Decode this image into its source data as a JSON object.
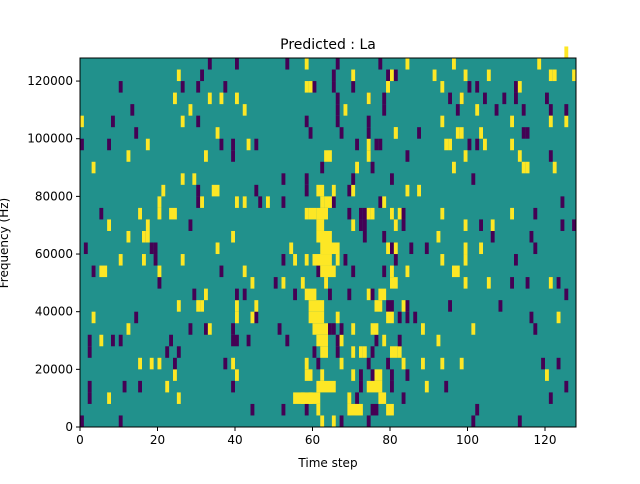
{
  "chart_data": {
    "type": "heatmap",
    "title": "Predicted : La",
    "xlabel": "Time step",
    "ylabel": "Frequency (Hz)",
    "xlim": [
      0,
      128
    ],
    "ylim": [
      0,
      128000
    ],
    "x_ticks": [
      0,
      20,
      40,
      60,
      80,
      100,
      120
    ],
    "x_tick_labels": [
      "0",
      "20",
      "40",
      "60",
      "80",
      "100",
      "120"
    ],
    "y_ticks": [
      0,
      20000,
      40000,
      60000,
      80000,
      100000,
      120000
    ],
    "y_tick_labels": [
      "0",
      "20000",
      "40000",
      "60000",
      "80000",
      "100000",
      "120000"
    ],
    "grid": false,
    "colormap": "viridis",
    "values_levels": [
      0,
      1,
      2
    ],
    "colors": {
      "low": "#440154",
      "mid": "#21918c",
      "high": "#fde725"
    },
    "background_level": 1,
    "row_height": 4000,
    "cells": {
      "high": [
        [
          62,
          0,
          1,
          ""
        ],
        [
          61,
          4000,
          1,
          "x3"
        ],
        [
          55,
          8000,
          5,
          ""
        ],
        [
          60,
          8000,
          2,
          "x2"
        ],
        [
          69,
          4000,
          4,
          ""
        ],
        [
          77,
          8000,
          2,
          ""
        ],
        [
          79,
          4000,
          2,
          ""
        ],
        [
          25,
          8000,
          1,
          ""
        ],
        [
          61,
          12000,
          5,
          ""
        ],
        [
          74,
          12000,
          4,
          ""
        ],
        [
          58,
          16000,
          2,
          ""
        ],
        [
          62,
          16000,
          1,
          ""
        ],
        [
          76,
          16000,
          2,
          ""
        ],
        [
          18,
          20000,
          1,
          ""
        ],
        [
          88,
          20000,
          1,
          ""
        ],
        [
          62,
          24000,
          2,
          ""
        ],
        [
          72,
          24000,
          1,
          ""
        ],
        [
          80,
          24000,
          2,
          ""
        ],
        [
          5,
          28000,
          1,
          ""
        ],
        [
          92,
          28000,
          1,
          ""
        ],
        [
          61,
          28000,
          3,
          "x2"
        ],
        [
          78,
          28000,
          1,
          ""
        ],
        [
          12,
          32000,
          1,
          ""
        ],
        [
          33,
          32000,
          1,
          ""
        ],
        [
          75,
          32000,
          1,
          ""
        ],
        [
          60,
          32000,
          4,
          "x6"
        ],
        [
          70,
          32000,
          1,
          ""
        ],
        [
          88,
          32000,
          1,
          ""
        ],
        [
          3,
          36000,
          1,
          ""
        ],
        [
          40,
          36000,
          1,
          ""
        ],
        [
          44,
          36000,
          1,
          ""
        ],
        [
          59,
          36000,
          4,
          ""
        ],
        [
          79,
          36000,
          2,
          "x3"
        ],
        [
          25,
          40000,
          1,
          ""
        ],
        [
          31,
          40000,
          1,
          ""
        ],
        [
          45,
          40000,
          1,
          "x3"
        ],
        [
          59,
          40000,
          4,
          "x2"
        ],
        [
          76,
          40000,
          2,
          ""
        ],
        [
          32,
          44000,
          1,
          "x2"
        ],
        [
          58,
          44000,
          3,
          ""
        ],
        [
          77,
          44000,
          2,
          ""
        ],
        [
          63,
          48000,
          1,
          ""
        ],
        [
          80,
          48000,
          2,
          ""
        ],
        [
          5,
          52000,
          2,
          ""
        ],
        [
          20,
          52000,
          1,
          ""
        ],
        [
          62,
          52000,
          4,
          ""
        ],
        [
          96,
          52000,
          2,
          ""
        ],
        [
          10,
          56000,
          1,
          ""
        ],
        [
          26,
          56000,
          1,
          ""
        ],
        [
          55,
          56000,
          1,
          ""
        ],
        [
          60,
          56000,
          5,
          "x2"
        ],
        [
          93,
          56000,
          1,
          ""
        ],
        [
          62,
          60000,
          5,
          ""
        ],
        [
          16,
          64000,
          1,
          ""
        ],
        [
          61,
          64000,
          3,
          ""
        ],
        [
          92,
          64000,
          1,
          ""
        ],
        [
          61,
          68000,
          2,
          ""
        ],
        [
          106,
          68000,
          1,
          ""
        ],
        [
          15,
          72000,
          1,
          ""
        ],
        [
          20,
          72000,
          1,
          ""
        ],
        [
          23,
          72000,
          2,
          ""
        ],
        [
          75,
          72000,
          1,
          ""
        ],
        [
          59,
          72000,
          2,
          ""
        ],
        [
          61,
          72000,
          3,
          "x2"
        ],
        [
          31,
          76000,
          1,
          ""
        ],
        [
          40,
          76000,
          1,
          ""
        ],
        [
          48,
          76000,
          1,
          ""
        ],
        [
          78,
          76000,
          1,
          ""
        ],
        [
          63,
          76000,
          2,
          ""
        ],
        [
          26,
          84000,
          1,
          ""
        ],
        [
          21,
          80000,
          1,
          ""
        ],
        [
          34,
          80000,
          2,
          ""
        ],
        [
          61,
          80000,
          2,
          "x2"
        ],
        [
          65,
          80000,
          1,
          ""
        ],
        [
          87,
          80000,
          1,
          ""
        ],
        [
          99,
          92000,
          1,
          ""
        ],
        [
          115,
          88000,
          1,
          ""
        ],
        [
          122,
          88000,
          1,
          ""
        ],
        [
          74,
          92000,
          1,
          ""
        ],
        [
          94,
          96000,
          1,
          ""
        ],
        [
          111,
          96000,
          1,
          ""
        ],
        [
          81,
          100000,
          1,
          ""
        ],
        [
          103,
          100000,
          1,
          ""
        ],
        [
          121,
          104000,
          1,
          ""
        ],
        [
          68,
          108000,
          1,
          ""
        ],
        [
          74,
          112000,
          1,
          ""
        ],
        [
          98,
          112000,
          1,
          ""
        ],
        [
          79,
          116000,
          1,
          ""
        ],
        [
          105,
          120000,
          1,
          ""
        ],
        [
          121,
          120000,
          1,
          ""
        ],
        [
          84,
          124000,
          1,
          ""
        ],
        [
          125,
          128000,
          1,
          ""
        ]
      ]
    }
  }
}
